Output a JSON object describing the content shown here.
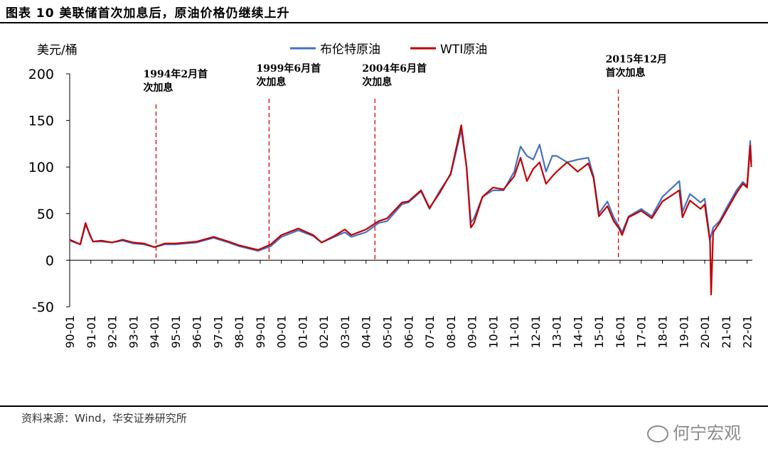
{
  "page": {
    "title": "图表 10  美联储首次加息后，原油价格仍继续上升",
    "source": "资料来源：Wind，华安证券研究所",
    "watermark": "何宁宏观",
    "watermark_icon": "wechat-icon"
  },
  "chart_data": {
    "type": "line",
    "ylabel": "美元/桶",
    "ylim": [
      -50,
      200
    ],
    "yticks": [
      -50,
      0,
      50,
      100,
      150,
      200
    ],
    "xlim": [
      1990.0,
      2022.25
    ],
    "xticks": [
      "90-01",
      "91-01",
      "92-01",
      "93-01",
      "94-01",
      "95-01",
      "96-01",
      "97-01",
      "98-01",
      "99-01",
      "00-01",
      "01-01",
      "02-01",
      "03-01",
      "04-01",
      "05-01",
      "06-01",
      "07-01",
      "08-01",
      "09-01",
      "10-01",
      "11-01",
      "12-01",
      "13-01",
      "14-01",
      "15-01",
      "16-01",
      "17-01",
      "18-01",
      "19-01",
      "20-01",
      "21-01",
      "22-01"
    ],
    "legend": [
      "布伦特原油",
      "WTI原油"
    ],
    "colors": {
      "brent": "#4472C4",
      "wti": "#C00000",
      "vline": "#E00000"
    },
    "series": [
      {
        "name": "布伦特原油",
        "key": "brent",
        "points": [
          [
            1990.0,
            21
          ],
          [
            1990.5,
            17
          ],
          [
            1990.75,
            38
          ],
          [
            1990.95,
            28
          ],
          [
            1991.1,
            20
          ],
          [
            1991.5,
            20
          ],
          [
            1992.0,
            19
          ],
          [
            1992.5,
            21
          ],
          [
            1993.0,
            18
          ],
          [
            1993.5,
            17
          ],
          [
            1994.0,
            14
          ],
          [
            1994.5,
            17
          ],
          [
            1995.0,
            17
          ],
          [
            1996.0,
            19
          ],
          [
            1996.8,
            24
          ],
          [
            1997.5,
            19
          ],
          [
            1998.0,
            15
          ],
          [
            1998.9,
            10
          ],
          [
            1999.5,
            15
          ],
          [
            2000.0,
            25
          ],
          [
            2000.8,
            32
          ],
          [
            2001.5,
            26
          ],
          [
            2001.9,
            19
          ],
          [
            2002.5,
            25
          ],
          [
            2003.0,
            30
          ],
          [
            2003.3,
            25
          ],
          [
            2004.0,
            30
          ],
          [
            2004.6,
            40
          ],
          [
            2005.0,
            42
          ],
          [
            2005.7,
            60
          ],
          [
            2006.0,
            62
          ],
          [
            2006.6,
            74
          ],
          [
            2007.0,
            55
          ],
          [
            2007.5,
            75
          ],
          [
            2008.0,
            92
          ],
          [
            2008.5,
            140
          ],
          [
            2008.75,
            100
          ],
          [
            2008.95,
            40
          ],
          [
            2009.1,
            45
          ],
          [
            2009.5,
            68
          ],
          [
            2010.0,
            75
          ],
          [
            2010.5,
            75
          ],
          [
            2011.0,
            95
          ],
          [
            2011.3,
            122
          ],
          [
            2011.6,
            112
          ],
          [
            2011.9,
            108
          ],
          [
            2012.2,
            124
          ],
          [
            2012.5,
            95
          ],
          [
            2012.8,
            112
          ],
          [
            2013.0,
            112
          ],
          [
            2013.5,
            105
          ],
          [
            2014.0,
            108
          ],
          [
            2014.5,
            110
          ],
          [
            2014.75,
            90
          ],
          [
            2015.0,
            50
          ],
          [
            2015.4,
            63
          ],
          [
            2015.7,
            46
          ],
          [
            2015.95,
            36
          ],
          [
            2016.1,
            30
          ],
          [
            2016.4,
            47
          ],
          [
            2017.0,
            55
          ],
          [
            2017.5,
            47
          ],
          [
            2018.0,
            68
          ],
          [
            2018.8,
            85
          ],
          [
            2018.95,
            52
          ],
          [
            2019.3,
            71
          ],
          [
            2019.8,
            62
          ],
          [
            2020.0,
            66
          ],
          [
            2020.25,
            22
          ],
          [
            2020.4,
            35
          ],
          [
            2020.7,
            42
          ],
          [
            2021.0,
            55
          ],
          [
            2021.5,
            75
          ],
          [
            2021.8,
            84
          ],
          [
            2022.0,
            80
          ],
          [
            2022.15,
            128
          ],
          [
            2022.2,
            105
          ]
        ]
      },
      {
        "name": "WTI原油",
        "key": "wti",
        "points": [
          [
            1990.0,
            22
          ],
          [
            1990.5,
            17
          ],
          [
            1990.75,
            40
          ],
          [
            1990.95,
            27
          ],
          [
            1991.1,
            20
          ],
          [
            1991.5,
            21
          ],
          [
            1992.0,
            19
          ],
          [
            1992.5,
            22
          ],
          [
            1993.0,
            19
          ],
          [
            1993.5,
            18
          ],
          [
            1994.0,
            14
          ],
          [
            1994.5,
            18
          ],
          [
            1995.0,
            18
          ],
          [
            1996.0,
            20
          ],
          [
            1996.8,
            25
          ],
          [
            1997.5,
            20
          ],
          [
            1998.0,
            16
          ],
          [
            1998.9,
            11
          ],
          [
            1999.5,
            17
          ],
          [
            2000.0,
            27
          ],
          [
            2000.8,
            34
          ],
          [
            2001.5,
            27
          ],
          [
            2001.9,
            19
          ],
          [
            2002.5,
            26
          ],
          [
            2003.0,
            33
          ],
          [
            2003.3,
            27
          ],
          [
            2004.0,
            33
          ],
          [
            2004.6,
            42
          ],
          [
            2005.0,
            45
          ],
          [
            2005.7,
            62
          ],
          [
            2006.0,
            63
          ],
          [
            2006.6,
            75
          ],
          [
            2007.0,
            56
          ],
          [
            2007.5,
            73
          ],
          [
            2008.0,
            93
          ],
          [
            2008.5,
            145
          ],
          [
            2008.75,
            100
          ],
          [
            2008.95,
            35
          ],
          [
            2009.1,
            40
          ],
          [
            2009.5,
            68
          ],
          [
            2010.0,
            78
          ],
          [
            2010.5,
            76
          ],
          [
            2011.0,
            90
          ],
          [
            2011.3,
            110
          ],
          [
            2011.6,
            85
          ],
          [
            2011.9,
            98
          ],
          [
            2012.2,
            105
          ],
          [
            2012.5,
            82
          ],
          [
            2012.8,
            90
          ],
          [
            2013.0,
            95
          ],
          [
            2013.5,
            105
          ],
          [
            2014.0,
            95
          ],
          [
            2014.5,
            104
          ],
          [
            2014.75,
            88
          ],
          [
            2015.0,
            47
          ],
          [
            2015.4,
            58
          ],
          [
            2015.7,
            42
          ],
          [
            2015.95,
            34
          ],
          [
            2016.1,
            27
          ],
          [
            2016.4,
            46
          ],
          [
            2017.0,
            53
          ],
          [
            2017.5,
            45
          ],
          [
            2018.0,
            63
          ],
          [
            2018.8,
            75
          ],
          [
            2018.95,
            46
          ],
          [
            2019.3,
            64
          ],
          [
            2019.8,
            55
          ],
          [
            2020.0,
            60
          ],
          [
            2020.25,
            20
          ],
          [
            2020.3,
            -37
          ],
          [
            2020.4,
            30
          ],
          [
            2020.7,
            40
          ],
          [
            2021.0,
            52
          ],
          [
            2021.5,
            72
          ],
          [
            2021.8,
            82
          ],
          [
            2022.0,
            78
          ],
          [
            2022.15,
            123
          ],
          [
            2022.2,
            100
          ]
        ]
      }
    ],
    "annotations": [
      {
        "x": 1994.08,
        "label_line1": "1994年2月首",
        "label_line2": "次加息"
      },
      {
        "x": 1999.42,
        "label_line1": "1999年6月首",
        "label_line2": "次加息"
      },
      {
        "x": 2004.42,
        "label_line1": "2004年6月首",
        "label_line2": "次加息"
      },
      {
        "x": 2015.92,
        "label_line1": "2015年12月",
        "label_line2": "首次加息"
      }
    ]
  }
}
